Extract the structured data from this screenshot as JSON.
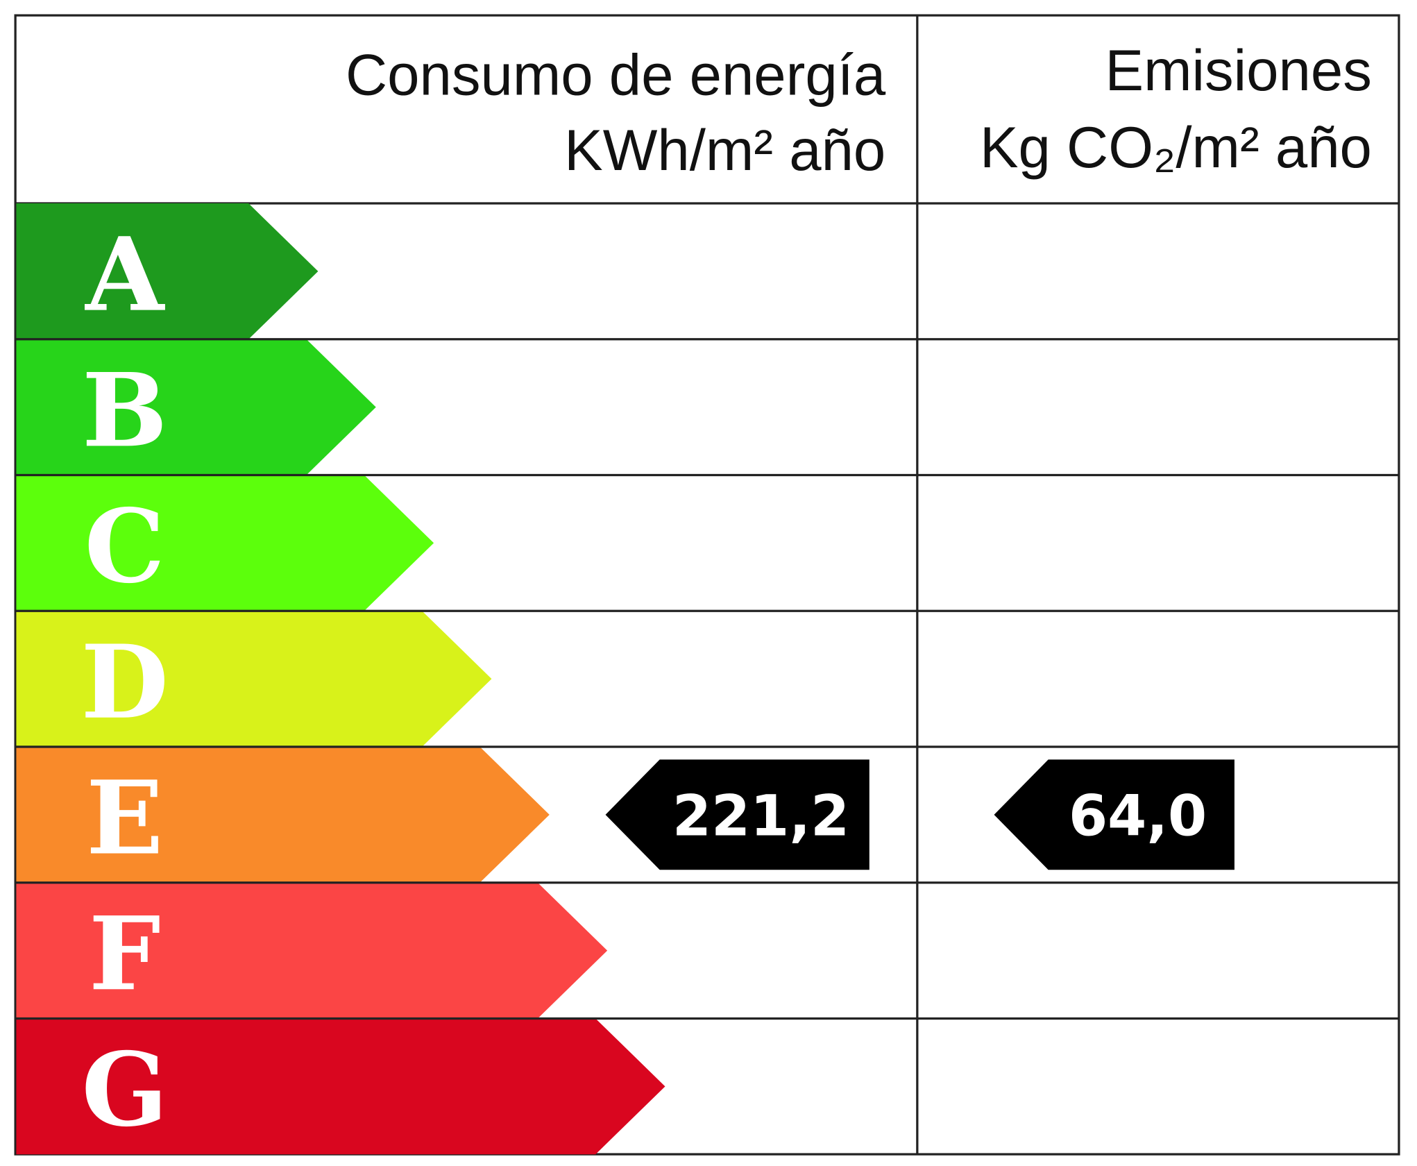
{
  "header": {
    "energy_title": "Consumo de energía",
    "energy_unit": "KWh/m² año",
    "emissions_title": "Emisiones",
    "emissions_unit": "Kg CO₂/m² año"
  },
  "ratings": [
    {
      "letter": "A",
      "color": "#1e9a1e"
    },
    {
      "letter": "B",
      "color": "#27d41a"
    },
    {
      "letter": "C",
      "color": "#5cff0c"
    },
    {
      "letter": "D",
      "color": "#d8f21a"
    },
    {
      "letter": "E",
      "color": "#f98a2a"
    },
    {
      "letter": "F",
      "color": "#fb4545"
    },
    {
      "letter": "G",
      "color": "#d9061f"
    }
  ],
  "energy": {
    "rating": "E",
    "value": "221,2"
  },
  "emissions": {
    "rating": "E",
    "value": "64,0"
  }
}
